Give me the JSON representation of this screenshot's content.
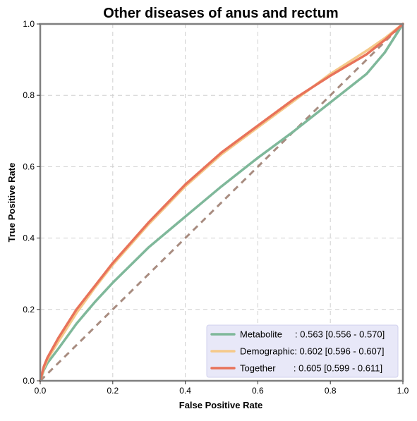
{
  "chart_data": {
    "type": "line",
    "title": "Other diseases of anus and rectum",
    "xlabel": "False Positive Rate",
    "ylabel": "True Positive Rate",
    "xlim": [
      0,
      1
    ],
    "ylim": [
      0,
      1
    ],
    "xticks": [
      "0.0",
      "0.2",
      "0.4",
      "0.6",
      "0.8",
      "1.0"
    ],
    "yticks": [
      "0.0",
      "0.2",
      "0.4",
      "0.6",
      "0.8",
      "1.0"
    ],
    "grid": true,
    "legend_position": "bottom-right",
    "series": [
      {
        "name": "Metabolite",
        "legend_label": "Metabolite     : 0.563 [0.556 - 0.570]",
        "color": "#7fb89a",
        "x": [
          0,
          0.01,
          0.02,
          0.05,
          0.1,
          0.15,
          0.2,
          0.3,
          0.4,
          0.5,
          0.6,
          0.7,
          0.8,
          0.9,
          0.95,
          1.0
        ],
        "y": [
          0,
          0.03,
          0.05,
          0.09,
          0.16,
          0.22,
          0.275,
          0.375,
          0.46,
          0.545,
          0.625,
          0.7,
          0.78,
          0.86,
          0.92,
          1.0
        ]
      },
      {
        "name": "Demographic",
        "legend_label": "Demographic: 0.602 [0.596 - 0.607]",
        "color": "#f5c98a",
        "x": [
          0,
          0.01,
          0.02,
          0.05,
          0.1,
          0.15,
          0.2,
          0.3,
          0.4,
          0.5,
          0.6,
          0.7,
          0.8,
          0.9,
          0.95,
          1.0
        ],
        "y": [
          0,
          0.035,
          0.06,
          0.11,
          0.19,
          0.26,
          0.325,
          0.44,
          0.545,
          0.635,
          0.71,
          0.785,
          0.86,
          0.925,
          0.96,
          1.0
        ]
      },
      {
        "name": "Together",
        "legend_label": "Together       : 0.605 [0.599 - 0.611]",
        "color": "#e8735a",
        "x": [
          0,
          0.01,
          0.02,
          0.05,
          0.1,
          0.15,
          0.2,
          0.3,
          0.4,
          0.5,
          0.6,
          0.7,
          0.8,
          0.9,
          0.95,
          1.0
        ],
        "y": [
          0,
          0.04,
          0.065,
          0.12,
          0.2,
          0.265,
          0.33,
          0.445,
          0.55,
          0.64,
          0.715,
          0.79,
          0.855,
          0.915,
          0.955,
          1.0
        ]
      }
    ],
    "reference_line": {
      "x": [
        0,
        1
      ],
      "y": [
        0,
        1
      ],
      "color": "#a88c80",
      "style": "dashed"
    }
  },
  "colors": {
    "frame": "#7f7f7f",
    "grid": "#cfcfcf",
    "legend_bg": "#e8e8f8",
    "legend_border": "#d0d0ee"
  }
}
